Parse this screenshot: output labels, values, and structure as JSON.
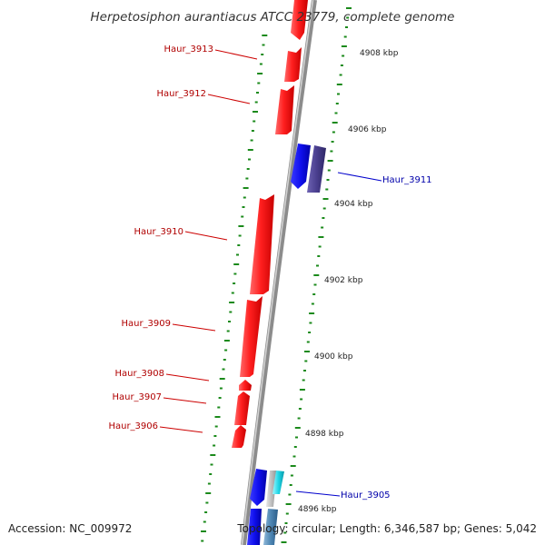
{
  "title": "Herpetosiphon aurantiacus ATCC 23779, complete genome",
  "footer": {
    "accession": "Accession: NC_009972",
    "stats": "Topology: circular; Length: 6,346,587 bp; Genes: 5,042"
  },
  "colors": {
    "forward_gene": "#ff1f1f",
    "reverse_gene": "#1010ee",
    "reverse_gene_dark": "#4a3f8f",
    "forward_label": "#b00000",
    "reverse_label": "#0000aa",
    "backbone": "#8c8c8c",
    "tick": "#1b8a1b"
  },
  "scale": {
    "unit": "kbp",
    "labels": [
      "4908 kbp",
      "4906 kbp",
      "4904 kbp",
      "4902 kbp",
      "4900 kbp",
      "4898 kbp",
      "4896 kbp"
    ]
  },
  "genes": {
    "forward_strand": [
      {
        "label": "Haur_3913"
      },
      {
        "label": "Haur_3912"
      },
      {
        "label": "Haur_3910"
      },
      {
        "label": "Haur_3909"
      },
      {
        "label": "Haur_3908"
      },
      {
        "label": "Haur_3907"
      },
      {
        "label": "Haur_3906"
      }
    ],
    "reverse_strand": [
      {
        "label": "Haur_3911"
      },
      {
        "label": "Haur_3905"
      }
    ]
  }
}
